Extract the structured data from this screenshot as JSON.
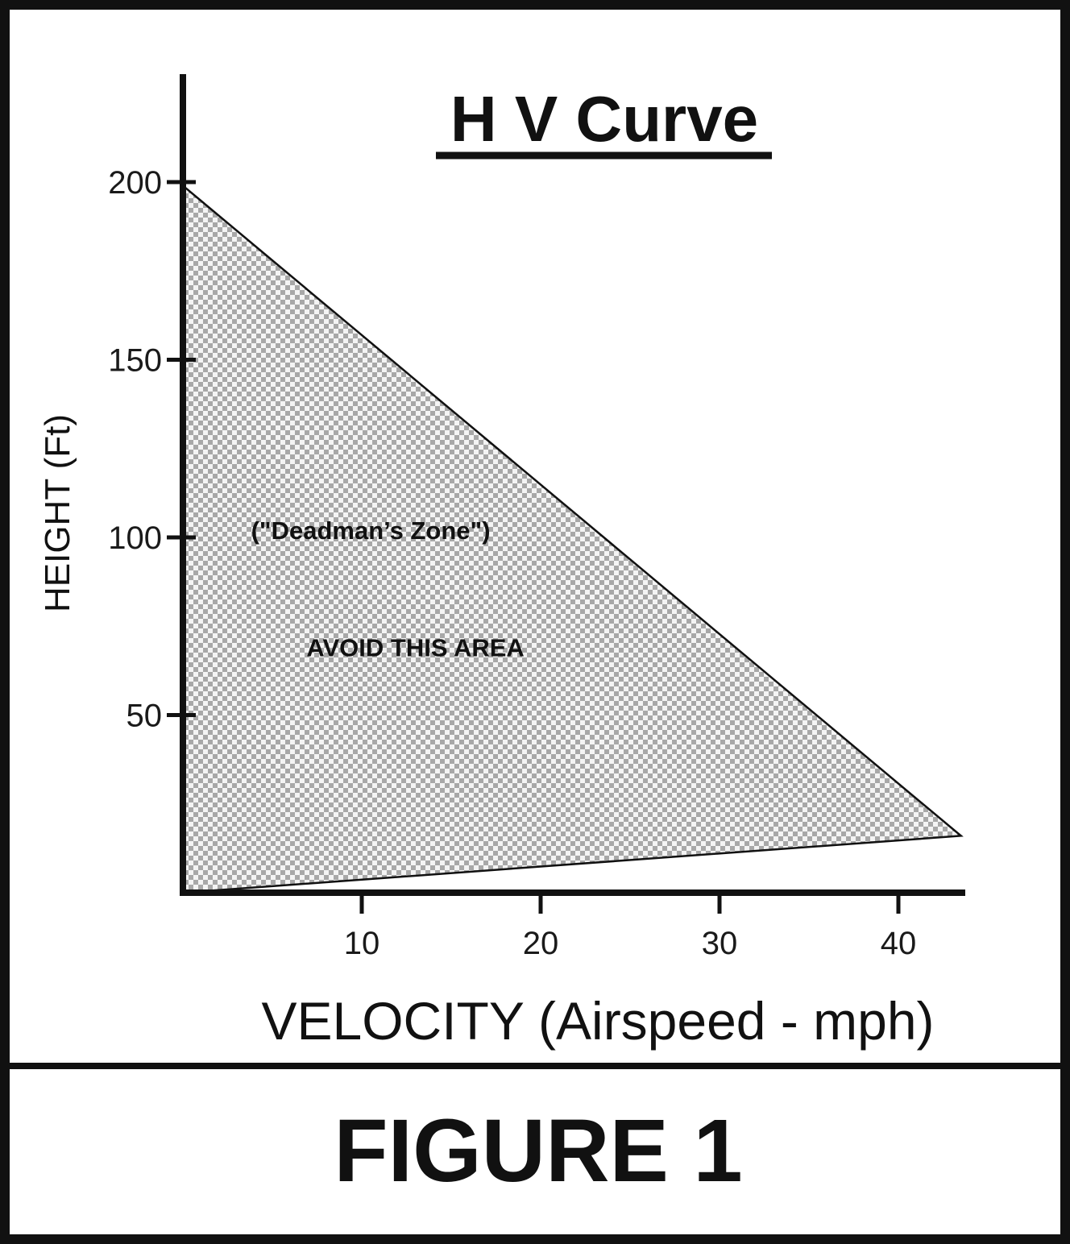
{
  "chart_data": {
    "type": "area",
    "title": "H V Curve",
    "xlabel": "VELOCITY (Airspeed - mph)",
    "ylabel": "HEIGHT (Ft)",
    "xlim": [
      0,
      44
    ],
    "ylim": [
      0,
      200
    ],
    "x_ticks": [
      10,
      20,
      30,
      40
    ],
    "y_ticks": [
      50,
      100,
      150,
      200
    ],
    "grid": false,
    "legend": "none",
    "region": {
      "x": [
        0,
        43.5,
        0
      ],
      "y": [
        199,
        16,
        0
      ]
    },
    "annotations": [
      {
        "text": "(\"Deadman’s Zone\")",
        "x": 10.5,
        "y": 102
      },
      {
        "text": "AVOID THIS AREA",
        "x": 13,
        "y": 69
      }
    ],
    "fill_pattern": "checkerboard"
  },
  "caption": "FIGURE 1",
  "colors": {
    "ink": "#111111",
    "check_dark": "#a8a8a8",
    "check_light": "#f4f4f4",
    "background": "#ffffff"
  }
}
